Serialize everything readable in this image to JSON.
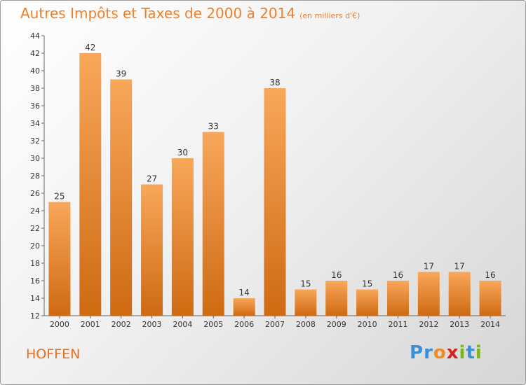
{
  "title": "Autres Impôts et Taxes de 2000 à 2014",
  "unit": "(en milliers d'€)",
  "commune": "HOFFEN",
  "logo": {
    "text": "Proxiti",
    "letters": [
      "P",
      "r",
      "o",
      "x",
      "i",
      "t",
      "i"
    ],
    "colors": [
      "#3a8fd6",
      "#3a8fd6",
      "#f08c1e",
      "#d82020",
      "#7ab51d",
      "#3a8fd6",
      "#7ab51d"
    ]
  },
  "colors": {
    "bar_light": "#f8a75a",
    "bar_dark": "#cf6a12",
    "title": "#f07f2a"
  },
  "chart_data": {
    "type": "bar",
    "title": "Autres Impôts et Taxes de 2000 à 2014",
    "unit": "(en milliers d'€)",
    "categories": [
      "2000",
      "2001",
      "2002",
      "2003",
      "2004",
      "2005",
      "2006",
      "2007",
      "2008",
      "2009",
      "2010",
      "2011",
      "2012",
      "2013",
      "2014"
    ],
    "values": [
      25,
      42,
      39,
      27,
      30,
      33,
      14,
      38,
      15,
      16,
      15,
      16,
      17,
      17,
      16
    ],
    "ylim": [
      12,
      44
    ],
    "yticks": [
      12,
      14,
      16,
      18,
      20,
      22,
      24,
      26,
      28,
      30,
      32,
      34,
      36,
      38,
      40,
      42,
      44
    ],
    "grid": false,
    "legend": "none"
  }
}
